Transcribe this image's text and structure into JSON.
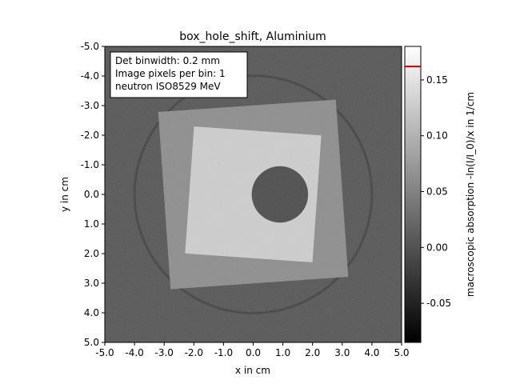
{
  "chart_data": {
    "type": "heatmap",
    "title": "box_hole_shift, Aluminium",
    "xlabel": "x in cm",
    "ylabel": "y in cm",
    "xlim": [
      -5.0,
      5.0
    ],
    "ylim": [
      5.0,
      -5.0
    ],
    "x_ticks": [
      "-5.0",
      "-4.0",
      "-3.0",
      "-2.0",
      "-1.0",
      "0.0",
      "1.0",
      "2.0",
      "3.0",
      "4.0",
      "5.0"
    ],
    "y_ticks": [
      "-5.0",
      "-4.0",
      "-3.0",
      "-2.0",
      "-1.0",
      "0.0",
      "1.0",
      "2.0",
      "3.0",
      "4.0",
      "5.0"
    ],
    "colorbar": {
      "label": "macroscopic absorption -ln(I/I_0)/x in 1/cm",
      "range": [
        -0.085,
        0.18
      ],
      "ticks": [
        "-0.05",
        "0.00",
        "0.05",
        "0.10",
        "0.15"
      ],
      "tick_values": [
        -0.05,
        0.0,
        0.05,
        0.1,
        0.15
      ],
      "colormap": "gray",
      "marker_value": 0.162,
      "marker_color": "#cc0000"
    },
    "annotation": {
      "lines": [
        "Det binwidth: 0.2 mm",
        "Image pixels per bin: 1",
        "neutron ISO8529 MeV"
      ]
    },
    "image_features": {
      "background_level": 0.0,
      "ring": {
        "cx": 0.0,
        "cy": 0.0,
        "r": 4.0,
        "level": -0.02
      },
      "outer_square": {
        "half_width": 3.0,
        "level": 0.06
      },
      "box": {
        "center": [
          0.0,
          0.0
        ],
        "half_width": 2.15,
        "rotation_deg": 4,
        "level": 0.13
      },
      "hole": {
        "center": [
          0.9,
          0.0
        ],
        "radius": 0.95,
        "level": -0.01
      }
    }
  }
}
